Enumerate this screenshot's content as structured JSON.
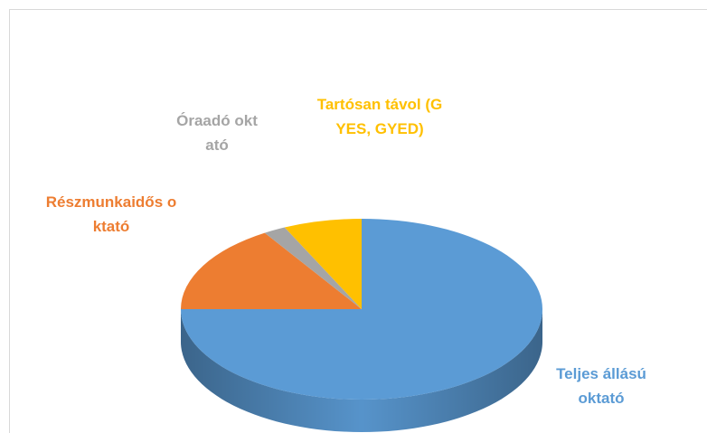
{
  "chart_data": {
    "type": "pie3d",
    "categories": [
      "Teljes állású oktató",
      "Részmunkaidős oktató",
      "Óraadó oktató",
      "Tartósan távol (GYES, GYED)"
    ],
    "values": [
      75,
      16,
      2,
      7
    ],
    "colors": [
      "#5b9bd5",
      "#ed7d31",
      "#a5a5a5",
      "#ffc000"
    ]
  }
}
